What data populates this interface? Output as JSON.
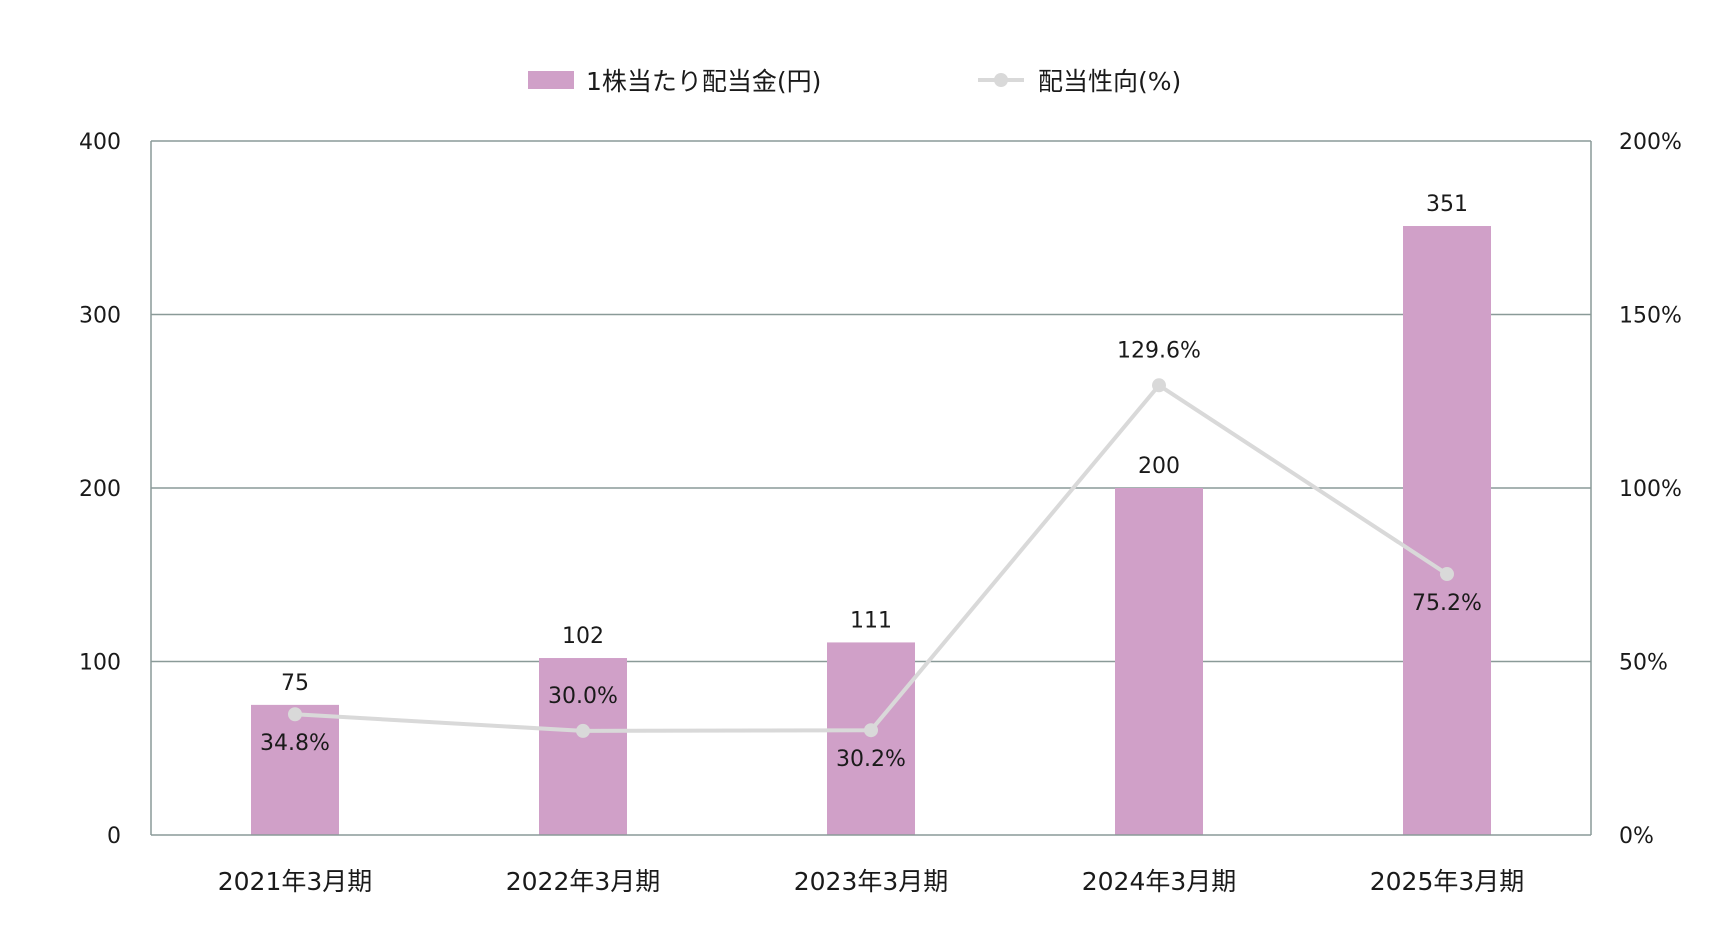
{
  "chart_data": {
    "type": "bar",
    "categories": [
      "2021年3月期",
      "2022年3月期",
      "2023年3月期",
      "2024年3月期",
      "2025年3月期"
    ],
    "series": [
      {
        "name": "1株当たり配当金(円)",
        "type": "bar",
        "axis": "left",
        "values": [
          75,
          102,
          111,
          200,
          351
        ],
        "labels": [
          "75",
          "102",
          "111",
          "200",
          "351"
        ],
        "color": "#d0a0c8"
      },
      {
        "name": "配当性向(%)",
        "type": "line",
        "axis": "right",
        "values": [
          34.8,
          30.0,
          30.2,
          129.6,
          75.2
        ],
        "labels": [
          "34.8%",
          "30.0%",
          "30.2%",
          "129.6%",
          "75.2%"
        ],
        "color": "#d9d9d9"
      }
    ],
    "ylim_left": [
      0,
      400
    ],
    "ylim_right": [
      0,
      200
    ],
    "yticks_left": [
      "0",
      "100",
      "200",
      "300",
      "400"
    ],
    "yticks_right": [
      "0%",
      "50%",
      "100%",
      "150%",
      "200%"
    ],
    "grid": true,
    "legend_position": "top-center"
  }
}
